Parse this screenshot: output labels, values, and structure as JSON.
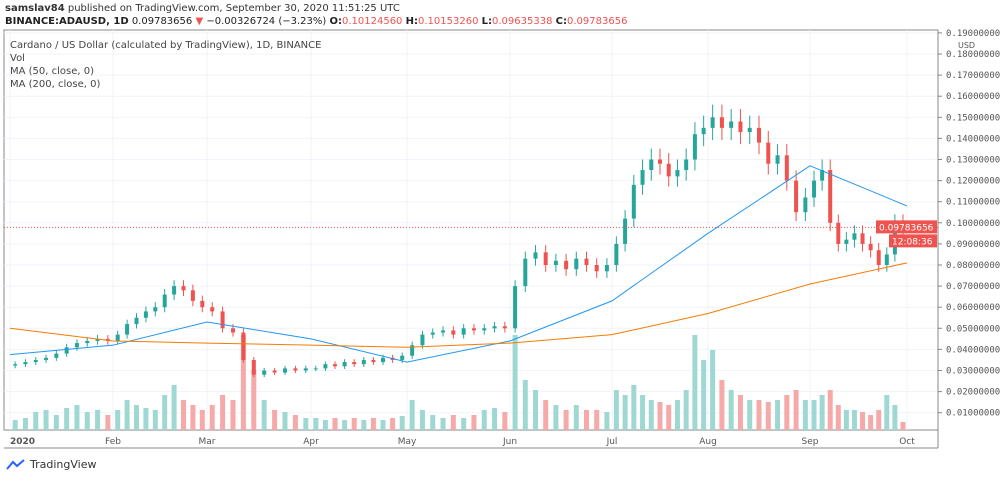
{
  "header": {
    "author": "samslav84",
    "published": "published on TradingView.com, September 30, 2020 11:51:25 UTC",
    "symbol": "BINANCE:ADAUSD, 1D",
    "last": "0.09783656",
    "change": "−0.00326724 (−3.23%)",
    "o_label": "O:",
    "o": "0.10124560",
    "h_label": "H:",
    "h": "0.10153260",
    "l_label": "L:",
    "l": "0.09635338",
    "c_label": "C:",
    "c": "0.09783656"
  },
  "legend": {
    "title": "Cardano / US Dollar (calculated by TradingView), 1D, BINANCE",
    "vol": "Vol",
    "ma50": "MA (50, close, 0)",
    "ma200": "MA (200, close, 0)"
  },
  "footer": {
    "brand": "TradingView"
  },
  "colors": {
    "up": "#26a69a",
    "down": "#ef5350",
    "ma50": "#2196f3",
    "ma200": "#f57c00",
    "vol_up": "#9fd8d2",
    "vol_down": "#f5a9a8"
  },
  "chart_data": {
    "type": "candlestick",
    "currency": "USD",
    "y_ticks": [
      "0.19000000",
      "0.18000000",
      "0.17000000",
      "0.16000000",
      "0.15000000",
      "0.14000000",
      "0.13000000",
      "0.12000000",
      "0.11000000",
      "0.10000000",
      "0.09000000",
      "0.08000000",
      "0.07000000",
      "0.06000000",
      "0.05000000",
      "0.04000000",
      "0.03000000",
      "0.02000000",
      "0.01000000"
    ],
    "ylim": [
      0,
      0.19
    ],
    "x_ticks": [
      "2020",
      "Feb",
      "Mar",
      "Apr",
      "May",
      "Jun",
      "Jul",
      "Aug",
      "Sep",
      "Oct"
    ],
    "price_label": "0.09783656",
    "countdown": "12:08:36",
    "closes_by_month": {
      "2020": [
        0.033,
        0.034,
        0.035,
        0.036,
        0.038,
        0.041,
        0.043,
        0.044,
        0.045,
        0.044
      ],
      "Feb": [
        0.047,
        0.052,
        0.055,
        0.058,
        0.06,
        0.066,
        0.07,
        0.068,
        0.063,
        0.06
      ],
      "Mar": [
        0.058,
        0.05,
        0.048,
        0.035,
        0.028,
        0.03,
        0.029,
        0.031,
        0.03,
        0.031
      ],
      "Apr": [
        0.031,
        0.033,
        0.032,
        0.034,
        0.033,
        0.035,
        0.034,
        0.036,
        0.035,
        0.037
      ],
      "May": [
        0.042,
        0.047,
        0.048,
        0.049,
        0.047,
        0.05,
        0.049,
        0.05,
        0.051,
        0.05
      ],
      "Jun": [
        0.07,
        0.083,
        0.086,
        0.08,
        0.082,
        0.078,
        0.083,
        0.08,
        0.077,
        0.08
      ],
      "Jul": [
        0.09,
        0.102,
        0.118,
        0.125,
        0.13,
        0.128,
        0.122,
        0.125,
        0.13,
        0.142,
        0.145
      ],
      "Aug": [
        0.15,
        0.145,
        0.148,
        0.143,
        0.145,
        0.138,
        0.128,
        0.132,
        0.12,
        0.105,
        0.112
      ],
      "Sep": [
        0.12,
        0.125,
        0.1,
        0.09,
        0.092,
        0.095,
        0.09,
        0.087,
        0.08,
        0.085,
        0.1,
        0.0978
      ]
    },
    "relative_volume_by_month": {
      "2020": [
        10,
        12,
        18,
        20,
        15,
        22,
        25,
        18,
        20,
        15
      ],
      "Feb": [
        20,
        30,
        25,
        22,
        20,
        35,
        45,
        30,
        25,
        20
      ],
      "Mar": [
        25,
        35,
        30,
        95,
        60,
        30,
        20,
        18,
        15,
        12
      ],
      "Apr": [
        12,
        10,
        12,
        10,
        12,
        10,
        12,
        10,
        12,
        14
      ],
      "May": [
        30,
        20,
        15,
        12,
        15,
        12,
        15,
        20,
        22,
        18
      ],
      "Jun": [
        95,
        50,
        40,
        30,
        25,
        20,
        25,
        20,
        20,
        18
      ],
      "Jul": [
        40,
        35,
        45,
        35,
        30,
        28,
        25,
        30,
        40,
        95,
        70
      ],
      "Aug": [
        80,
        50,
        40,
        35,
        30,
        30,
        28,
        30,
        35,
        40,
        30
      ],
      "Sep": [
        30,
        35,
        40,
        25,
        20,
        20,
        18,
        15,
        20,
        35,
        25,
        8
      ]
    },
    "ma50_by_month": {
      "2020": 0.0375,
      "Feb": 0.042,
      "Mar": 0.053,
      "Apr": 0.045,
      "May": 0.034,
      "Jun": 0.044,
      "Jul": 0.063,
      "Aug": 0.095,
      "Sep": 0.127,
      "Oct": 0.108
    },
    "ma200_by_month": {
      "2020": 0.05,
      "Feb": 0.044,
      "Mar": 0.043,
      "Apr": 0.042,
      "May": 0.041,
      "Jun": 0.043,
      "Jul": 0.047,
      "Aug": 0.057,
      "Sep": 0.071,
      "Oct": 0.081
    }
  }
}
